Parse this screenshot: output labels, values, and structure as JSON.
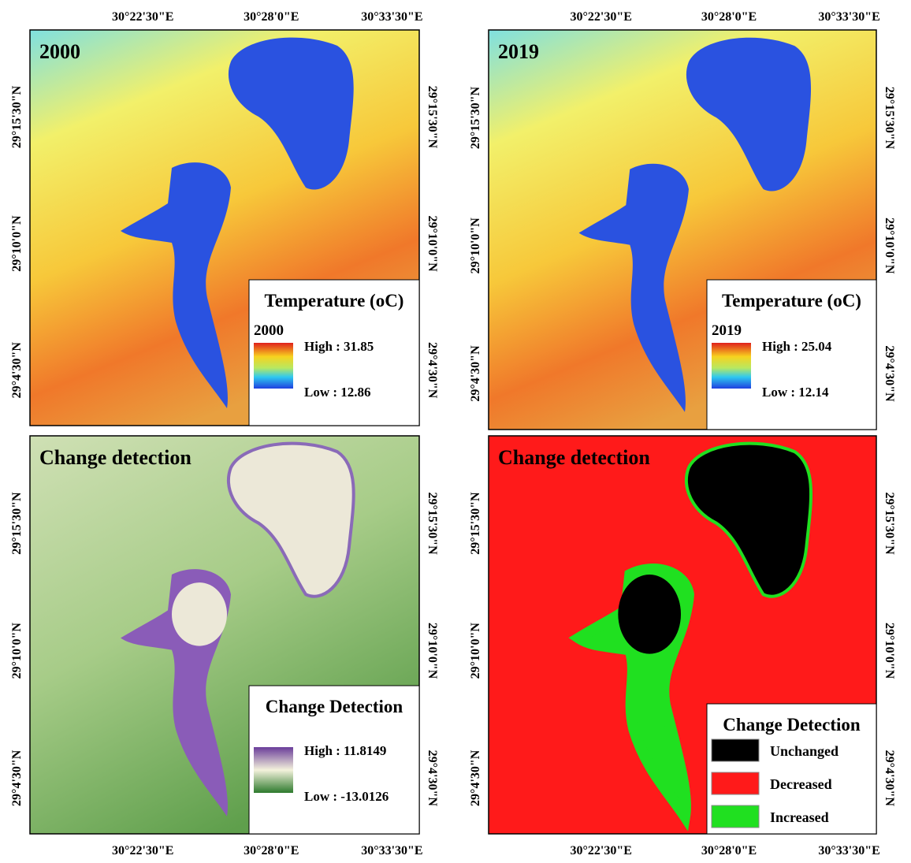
{
  "axes": {
    "lon_labels": [
      "30°22'30\"E",
      "30°28'0\"E",
      "30°33'30\"E"
    ],
    "lat_labels": [
      "29°15'30\"N",
      "29°10'0\"N",
      "29°4'30\"N"
    ]
  },
  "panels": [
    {
      "label": "2000",
      "legend": {
        "title": "Temperature (oC)",
        "subtitle": "2000",
        "high": "High : 31.85",
        "low": "Low : 12.86"
      }
    },
    {
      "label": "2019",
      "legend": {
        "title": "Temperature (oC)",
        "subtitle": "2019",
        "high": "High : 25.04",
        "low": "Low : 12.14"
      }
    },
    {
      "label": "Change detection",
      "legend": {
        "title": "Change Detection",
        "high": "High : 11.8149",
        "low": "Low : -13.0126"
      }
    },
    {
      "label": "Change detection",
      "legend": {
        "title": "Change Detection",
        "classes": [
          "Unchanged",
          "Decreased",
          "Increased"
        ]
      }
    }
  ]
}
